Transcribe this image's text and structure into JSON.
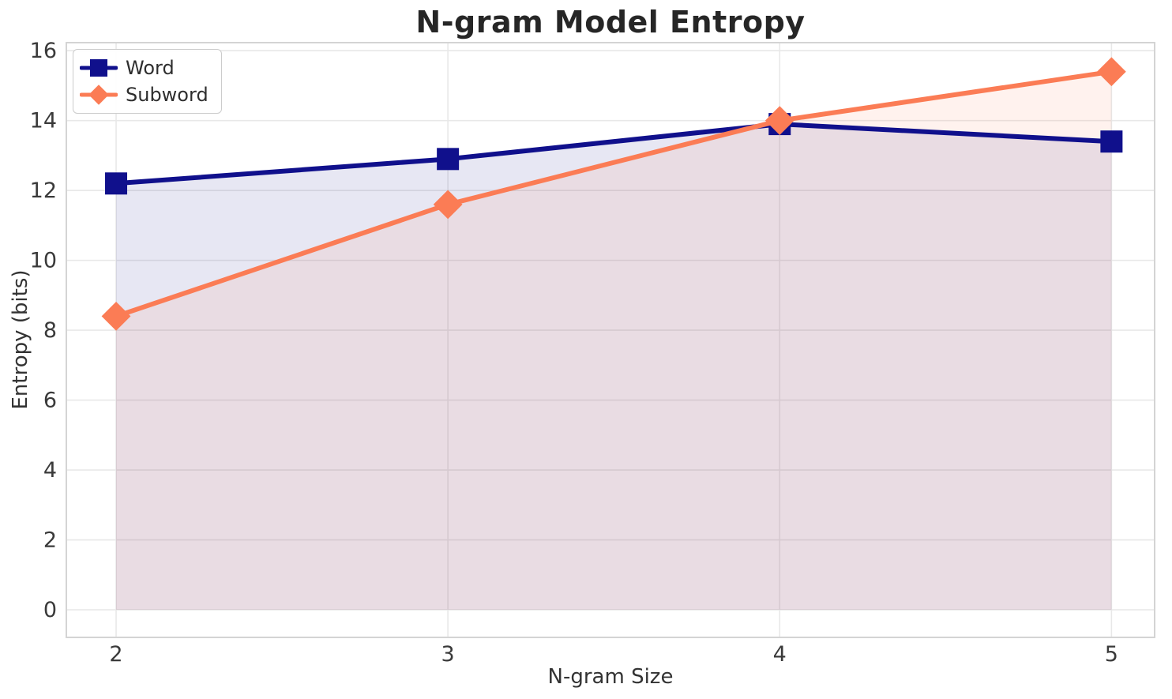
{
  "title": "N-gram Model Entropy",
  "chart_data": {
    "type": "line",
    "title": "N-gram Model Entropy",
    "xlabel": "N-gram Size",
    "ylabel": "Entropy (bits)",
    "x": [
      2,
      3,
      4,
      5
    ],
    "series": [
      {
        "name": "Word",
        "values": [
          12.2,
          12.9,
          13.9,
          13.4
        ],
        "color": "#10108C",
        "marker": "square",
        "fill_alpha": 0.1
      },
      {
        "name": "Subword",
        "values": [
          8.4,
          11.6,
          14.0,
          15.4
        ],
        "color": "#FB7C55",
        "marker": "diamond",
        "fill_alpha": 0.1
      }
    ],
    "xticks": [
      2,
      3,
      4,
      5
    ],
    "yticks": [
      0,
      2,
      4,
      6,
      8,
      10,
      12,
      14,
      16
    ],
    "xlim": [
      1.85,
      5.13
    ],
    "ylim": [
      -0.79,
      16.23
    ],
    "grid": true,
    "area_fill_to": 0,
    "legend_position": "upper left"
  },
  "style": {
    "background_color": "#FFFFFF",
    "grid_color": "#E8E8E8",
    "spine_color": "#D4D4D4",
    "title_color": "#262626",
    "tick_label_color": "#3A3A3A",
    "axis_label_color": "#333333",
    "legend_border_color": "#CCCCCC",
    "word_series_color": "#10108C",
    "subword_series_color": "#FB7C55"
  }
}
